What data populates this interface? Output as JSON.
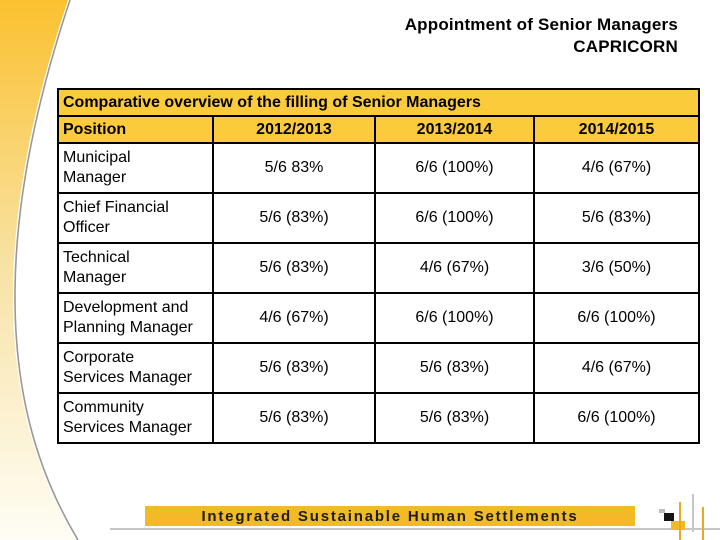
{
  "slide": {
    "title_line1": "Appointment of Senior Managers",
    "title_line2": "CAPRICORN"
  },
  "table": {
    "caption": "Comparative overview of the filling of Senior Managers",
    "columns": [
      "Position",
      "2012/2013",
      "2013/2014",
      "2014/2015"
    ],
    "rows": [
      {
        "position": "Municipal\nManager",
        "values": [
          "5/6 83%",
          "6/6 (100%)",
          "4/6 (67%)"
        ]
      },
      {
        "position": "Chief Financial\nOfficer",
        "values": [
          "5/6 (83%)",
          "6/6 (100%)",
          "5/6 (83%)"
        ]
      },
      {
        "position": "Technical\nManager",
        "values": [
          "5/6 (83%)",
          "4/6 (67%)",
          "3/6 (50%)"
        ]
      },
      {
        "position": "Development and\nPlanning Manager",
        "values": [
          "4/6 (67%)",
          "6/6 (100%)",
          "6/6 (100%)"
        ]
      },
      {
        "position": "Corporate\nServices Manager",
        "values": [
          "5/6 (83%)",
          "5/6 (83%)",
          "4/6 (67%)"
        ]
      },
      {
        "position": "Community\nServices Manager",
        "values": [
          "5/6 (83%)",
          "5/6 (83%)",
          "6/6 (100%)"
        ]
      }
    ]
  },
  "footer": {
    "banner": "Integrated Sustainable Human Settlements"
  },
  "colors": {
    "table_gold": "#FCCB3C",
    "banner_gold": "#F2BA26",
    "swoosh_gold_top": "#FBC130",
    "swoosh_fade": "#FFFDF5",
    "curve_gray": "#999999",
    "rule_gray": "#C6C6C6"
  }
}
